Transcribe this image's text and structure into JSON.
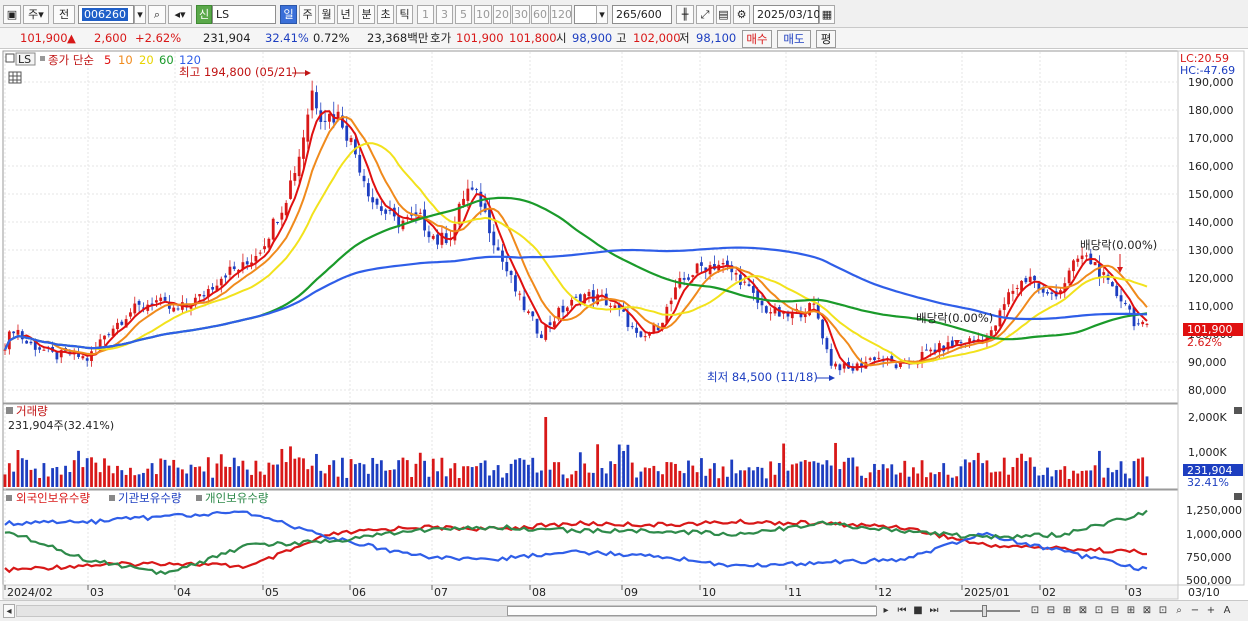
{
  "toolbar": {
    "type_select": "주",
    "prev_label": "전",
    "code": "006260",
    "sin_label": "신",
    "name": "LS",
    "periods": [
      "일",
      "주",
      "월",
      "년",
      "분",
      "초",
      "틱"
    ],
    "active_period": "일",
    "intervals": [
      "1",
      "3",
      "5",
      "10",
      "20",
      "30",
      "60",
      "120"
    ],
    "count": "265",
    "count_total": "/600",
    "date": "2025/03/10"
  },
  "info": {
    "price": "101,900",
    "change": "2,600",
    "pct": "+2.62%",
    "volume": "231,904",
    "vol_ratio": "32.41%",
    "turnover": "0.72%",
    "amount": "23,368백만",
    "hoga_label": "호가",
    "ask": "101,900",
    "bid": "101,800",
    "open_label": "시",
    "open": "98,900",
    "high_label": "고",
    "high": "102,000",
    "low_label": "저",
    "low": "98,100",
    "buy_label": "매수",
    "sell_label": "매도",
    "eval_label": "평"
  },
  "price_panel": {
    "ticker": "LS",
    "ma_title": "종가 단순",
    "ma_periods": [
      "5",
      "10",
      "20",
      "60",
      "120"
    ],
    "ma_colors": [
      "#e01010",
      "#f08a1c",
      "#f2e21c",
      "#1a9a2a",
      "#2f5ee8"
    ],
    "high_note": "최고 194,800 (05/21)",
    "low_note": "최저 84,500 (11/18)",
    "dividend_note": "배당락(0.00%)",
    "lc": "LC:20.59",
    "hc": "HC:-47.69",
    "price_tag": "101,900",
    "pct_tag": "2.62%",
    "y_ticks": [
      "190,000",
      "180,000",
      "170,000",
      "160,000",
      "150,000",
      "140,000",
      "130,000",
      "120,000",
      "110,000",
      "100,000",
      "90,000",
      "80,000"
    ]
  },
  "volume_panel": {
    "title": "거래량",
    "current": "231,904주(32.41%)",
    "y_ticks": [
      "2,000K",
      "1,000K"
    ],
    "tag": "231,904",
    "tag_pct": "32.41%"
  },
  "holder_panel": {
    "legend": [
      "외국인보유수량",
      "기관보유수량",
      "개인보유수량"
    ],
    "colors": [
      "#d81818",
      "#2f5ee8",
      "#2e8a4a"
    ],
    "y_ticks": [
      "1,250,000",
      "1,000,000",
      "750,000",
      "500,000"
    ]
  },
  "x_axis": [
    "2024/02",
    "03",
    "04",
    "05",
    "06",
    "07",
    "08",
    "09",
    "10",
    "11",
    "12",
    "2025/01",
    "02",
    "03",
    "03/10"
  ]
}
